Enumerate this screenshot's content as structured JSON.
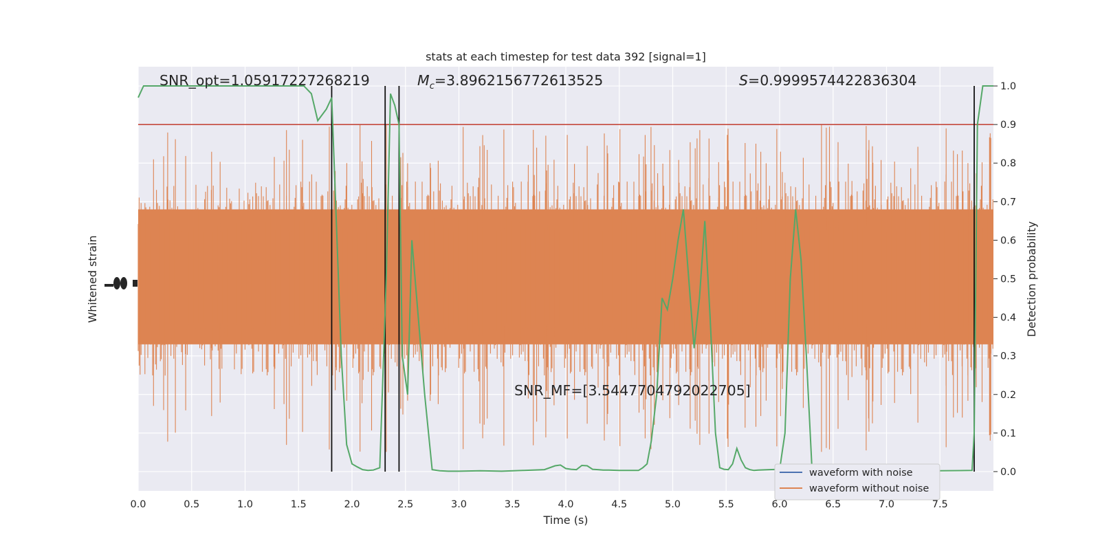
{
  "chart_data": {
    "type": "line",
    "title": "stats at each timestep for test data 392 [signal=1]",
    "xlabel": "Time (s)",
    "ylabel_left": "Whitened strain",
    "ylabel_right": "Detection probability",
    "xlim": [
      0.0,
      8.0
    ],
    "ylim_right": [
      -0.05,
      1.05
    ],
    "xticks": [
      "0.0",
      "0.5",
      "1.0",
      "1.5",
      "2.0",
      "2.5",
      "3.0",
      "3.5",
      "4.0",
      "4.5",
      "5.0",
      "5.5",
      "6.0",
      "6.5",
      "7.0",
      "7.5"
    ],
    "yticks_right": [
      "0.0",
      "0.1",
      "0.2",
      "0.3",
      "0.4",
      "0.5",
      "0.6",
      "0.7",
      "0.8",
      "0.9",
      "1.0"
    ],
    "grid": true,
    "annotations": {
      "snr_opt": "SNR_opt=1.05917227268219",
      "mc_symbol": "M",
      "mc_subscript": "c",
      "mc_value": "=3.8962156772613525",
      "s_symbol": "S",
      "s_value": "=0.9999574422836304",
      "snr_mf": "SNR_MF=[3.5447704792022705]"
    },
    "threshold": {
      "y": 0.9,
      "color": "#c0392b"
    },
    "vertical_lines_x": [
      1.81,
      2.31,
      2.44,
      7.82
    ],
    "series": [
      {
        "name": "waveform with noise",
        "color": "#4c72b0"
      },
      {
        "name": "waveform without noise",
        "color": "#dd8452"
      }
    ],
    "probability_series": {
      "color": "#55a868",
      "x": [
        0.0,
        0.05,
        0.1,
        0.2,
        0.3,
        0.4,
        0.5,
        0.6,
        0.7,
        0.8,
        0.9,
        1.0,
        1.1,
        1.2,
        1.3,
        1.4,
        1.5,
        1.55,
        1.62,
        1.68,
        1.76,
        1.81,
        1.86,
        1.9,
        1.95,
        2.0,
        2.05,
        2.1,
        2.15,
        2.2,
        2.26,
        2.32,
        2.36,
        2.4,
        2.44,
        2.47,
        2.52,
        2.56,
        2.62,
        2.68,
        2.75,
        2.82,
        2.9,
        3.0,
        3.2,
        3.4,
        3.6,
        3.8,
        3.9,
        3.95,
        4.0,
        4.05,
        4.1,
        4.15,
        4.2,
        4.25,
        4.3,
        4.35,
        4.4,
        4.5,
        4.6,
        4.68,
        4.72,
        4.76,
        4.8,
        4.85,
        4.9,
        4.95,
        5.0,
        5.05,
        5.1,
        5.15,
        5.2,
        5.25,
        5.3,
        5.35,
        5.4,
        5.44,
        5.48,
        5.52,
        5.56,
        5.6,
        5.64,
        5.68,
        5.72,
        5.76,
        5.8,
        5.9,
        6.0,
        6.05,
        6.1,
        6.15,
        6.2,
        6.25,
        6.3,
        6.4,
        6.5,
        7.0,
        7.5,
        7.8,
        7.82,
        7.85,
        7.9,
        7.95,
        8.0
      ],
      "y": [
        0.97,
        1.0,
        1.0,
        1.0,
        1.0,
        1.0,
        1.0,
        1.0,
        1.0,
        1.0,
        1.0,
        1.0,
        1.0,
        1.0,
        1.0,
        1.0,
        1.0,
        1.0,
        0.98,
        0.91,
        0.94,
        0.97,
        0.6,
        0.3,
        0.07,
        0.02,
        0.012,
        0.005,
        0.003,
        0.004,
        0.01,
        0.5,
        0.98,
        0.95,
        0.9,
        0.3,
        0.2,
        0.6,
        0.4,
        0.2,
        0.005,
        0.002,
        0.001,
        0.001,
        0.002,
        0.001,
        0.003,
        0.005,
        0.015,
        0.017,
        0.008,
        0.006,
        0.005,
        0.016,
        0.015,
        0.006,
        0.005,
        0.004,
        0.004,
        0.003,
        0.003,
        0.003,
        0.01,
        0.02,
        0.08,
        0.2,
        0.45,
        0.42,
        0.5,
        0.6,
        0.68,
        0.5,
        0.32,
        0.45,
        0.65,
        0.4,
        0.1,
        0.01,
        0.006,
        0.005,
        0.02,
        0.06,
        0.03,
        0.01,
        0.005,
        0.003,
        0.004,
        0.005,
        0.006,
        0.1,
        0.5,
        0.68,
        0.55,
        0.3,
        0.02,
        0.003,
        0.002,
        0.002,
        0.002,
        0.003,
        0.1,
        0.9,
        1.0,
        1.0,
        1.0
      ]
    }
  }
}
